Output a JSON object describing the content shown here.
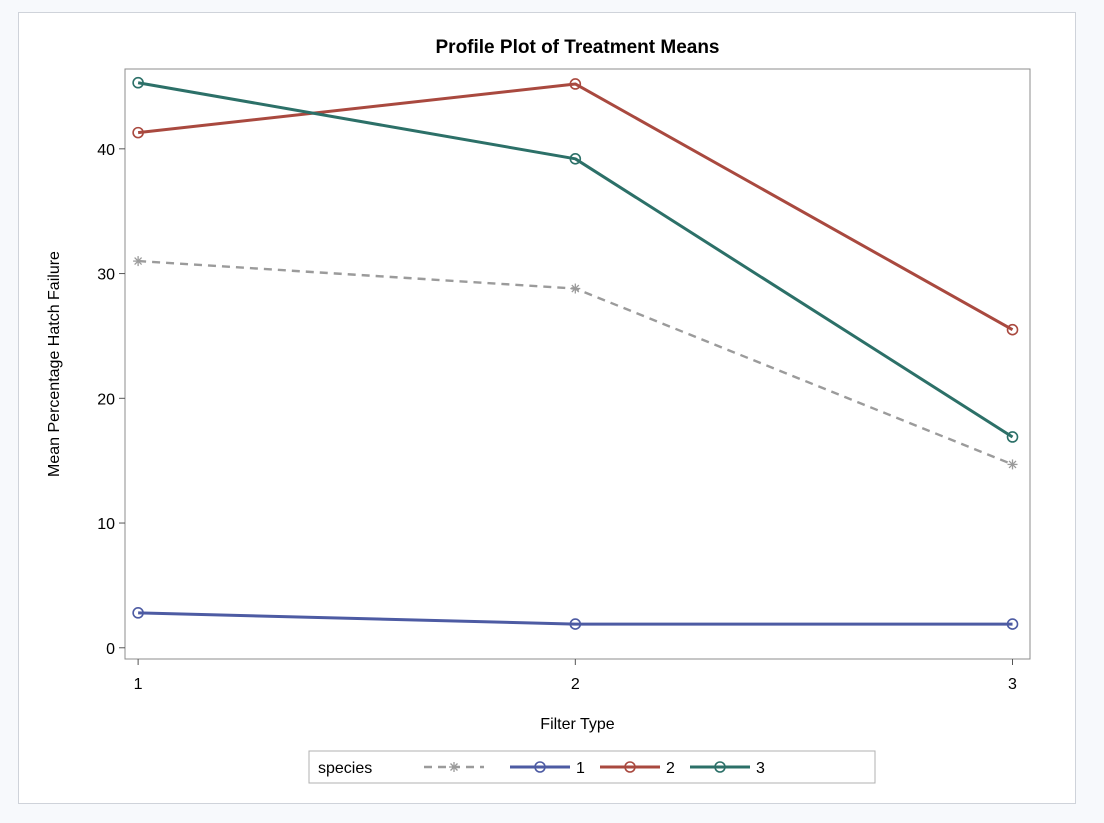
{
  "chart_data": {
    "type": "line",
    "title": "Profile Plot of Treatment Means",
    "xlabel": "Filter Type",
    "ylabel": "Mean Percentage Hatch Failure",
    "x": [
      1,
      2,
      3
    ],
    "x_tick_labels": [
      "1",
      "2",
      "3"
    ],
    "y_ticks": [
      0,
      10,
      20,
      30,
      40
    ],
    "y_tick_labels": [
      "0",
      "10",
      "20",
      "30",
      "40"
    ],
    "xlim": [
      0.97,
      3.04
    ],
    "ylim": [
      -0.9,
      46.4
    ],
    "grid": false,
    "legend": {
      "title": "species",
      "placement": "bottom-center"
    },
    "series": [
      {
        "name": "",
        "values": [
          31.0,
          28.8,
          14.7
        ],
        "color": "#9b9b9b",
        "dash": true,
        "marker": "star"
      },
      {
        "name": "1",
        "values": [
          2.8,
          1.9,
          1.9
        ],
        "color": "#4d5ba3",
        "dash": false,
        "marker": "circle"
      },
      {
        "name": "2",
        "values": [
          41.3,
          45.2,
          25.5
        ],
        "color": "#a9493f",
        "dash": false,
        "marker": "circle"
      },
      {
        "name": "3",
        "values": [
          45.3,
          39.2,
          16.9
        ],
        "color": "#2c7068",
        "dash": false,
        "marker": "circle"
      }
    ]
  }
}
